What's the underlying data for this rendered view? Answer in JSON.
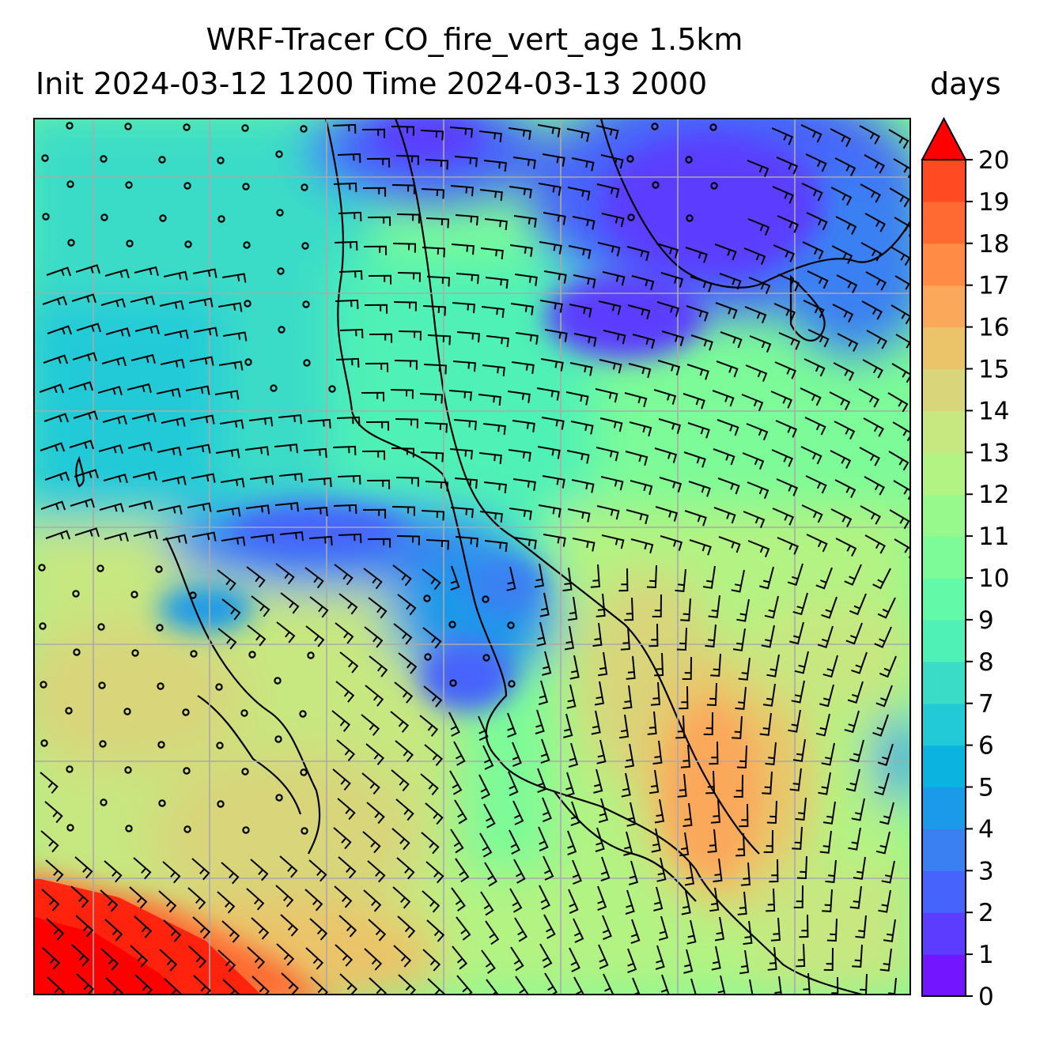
{
  "title": {
    "line1": "WRF-Tracer CO_fire_vert_age 1.5km",
    "line2": "Init 2024-03-12 1200 Time 2024-03-13 2000",
    "unit": "days"
  },
  "chart_data": {
    "type": "heatmap",
    "variable": "CO_fire_vert_age",
    "units": "days",
    "colorbar": {
      "min": 0,
      "max": 20,
      "step": 1,
      "extend": "max",
      "ticks": [
        0,
        1,
        2,
        3,
        4,
        5,
        6,
        7,
        8,
        9,
        10,
        11,
        12,
        13,
        14,
        15,
        16,
        17,
        18,
        19,
        20
      ],
      "colors": [
        "#7316ff",
        "#5c3dff",
        "#4664fb",
        "#3a80f3",
        "#1b9ae9",
        "#0bb4e0",
        "#22cad8",
        "#3bdcc7",
        "#4ff1b6",
        "#62faa8",
        "#7cfb98",
        "#97f98b",
        "#b2f383",
        "#c7e780",
        "#d8d57a",
        "#ebc369",
        "#fba85a",
        "#ff8b45",
        "#ff6a33",
        "#ff4a22",
        "#ff1c0a"
      ],
      "over_color": "#ff0000"
    },
    "field_description": "Low values (1–4 days) over the northern interior and a SW–NE band across the centre; medium values (6–10) over the north-west; higher values (12–16) over the south and east; highest (18–20) in the far south-west corner.",
    "gridlines": true,
    "wind_barbs": true,
    "coastlines": true
  }
}
